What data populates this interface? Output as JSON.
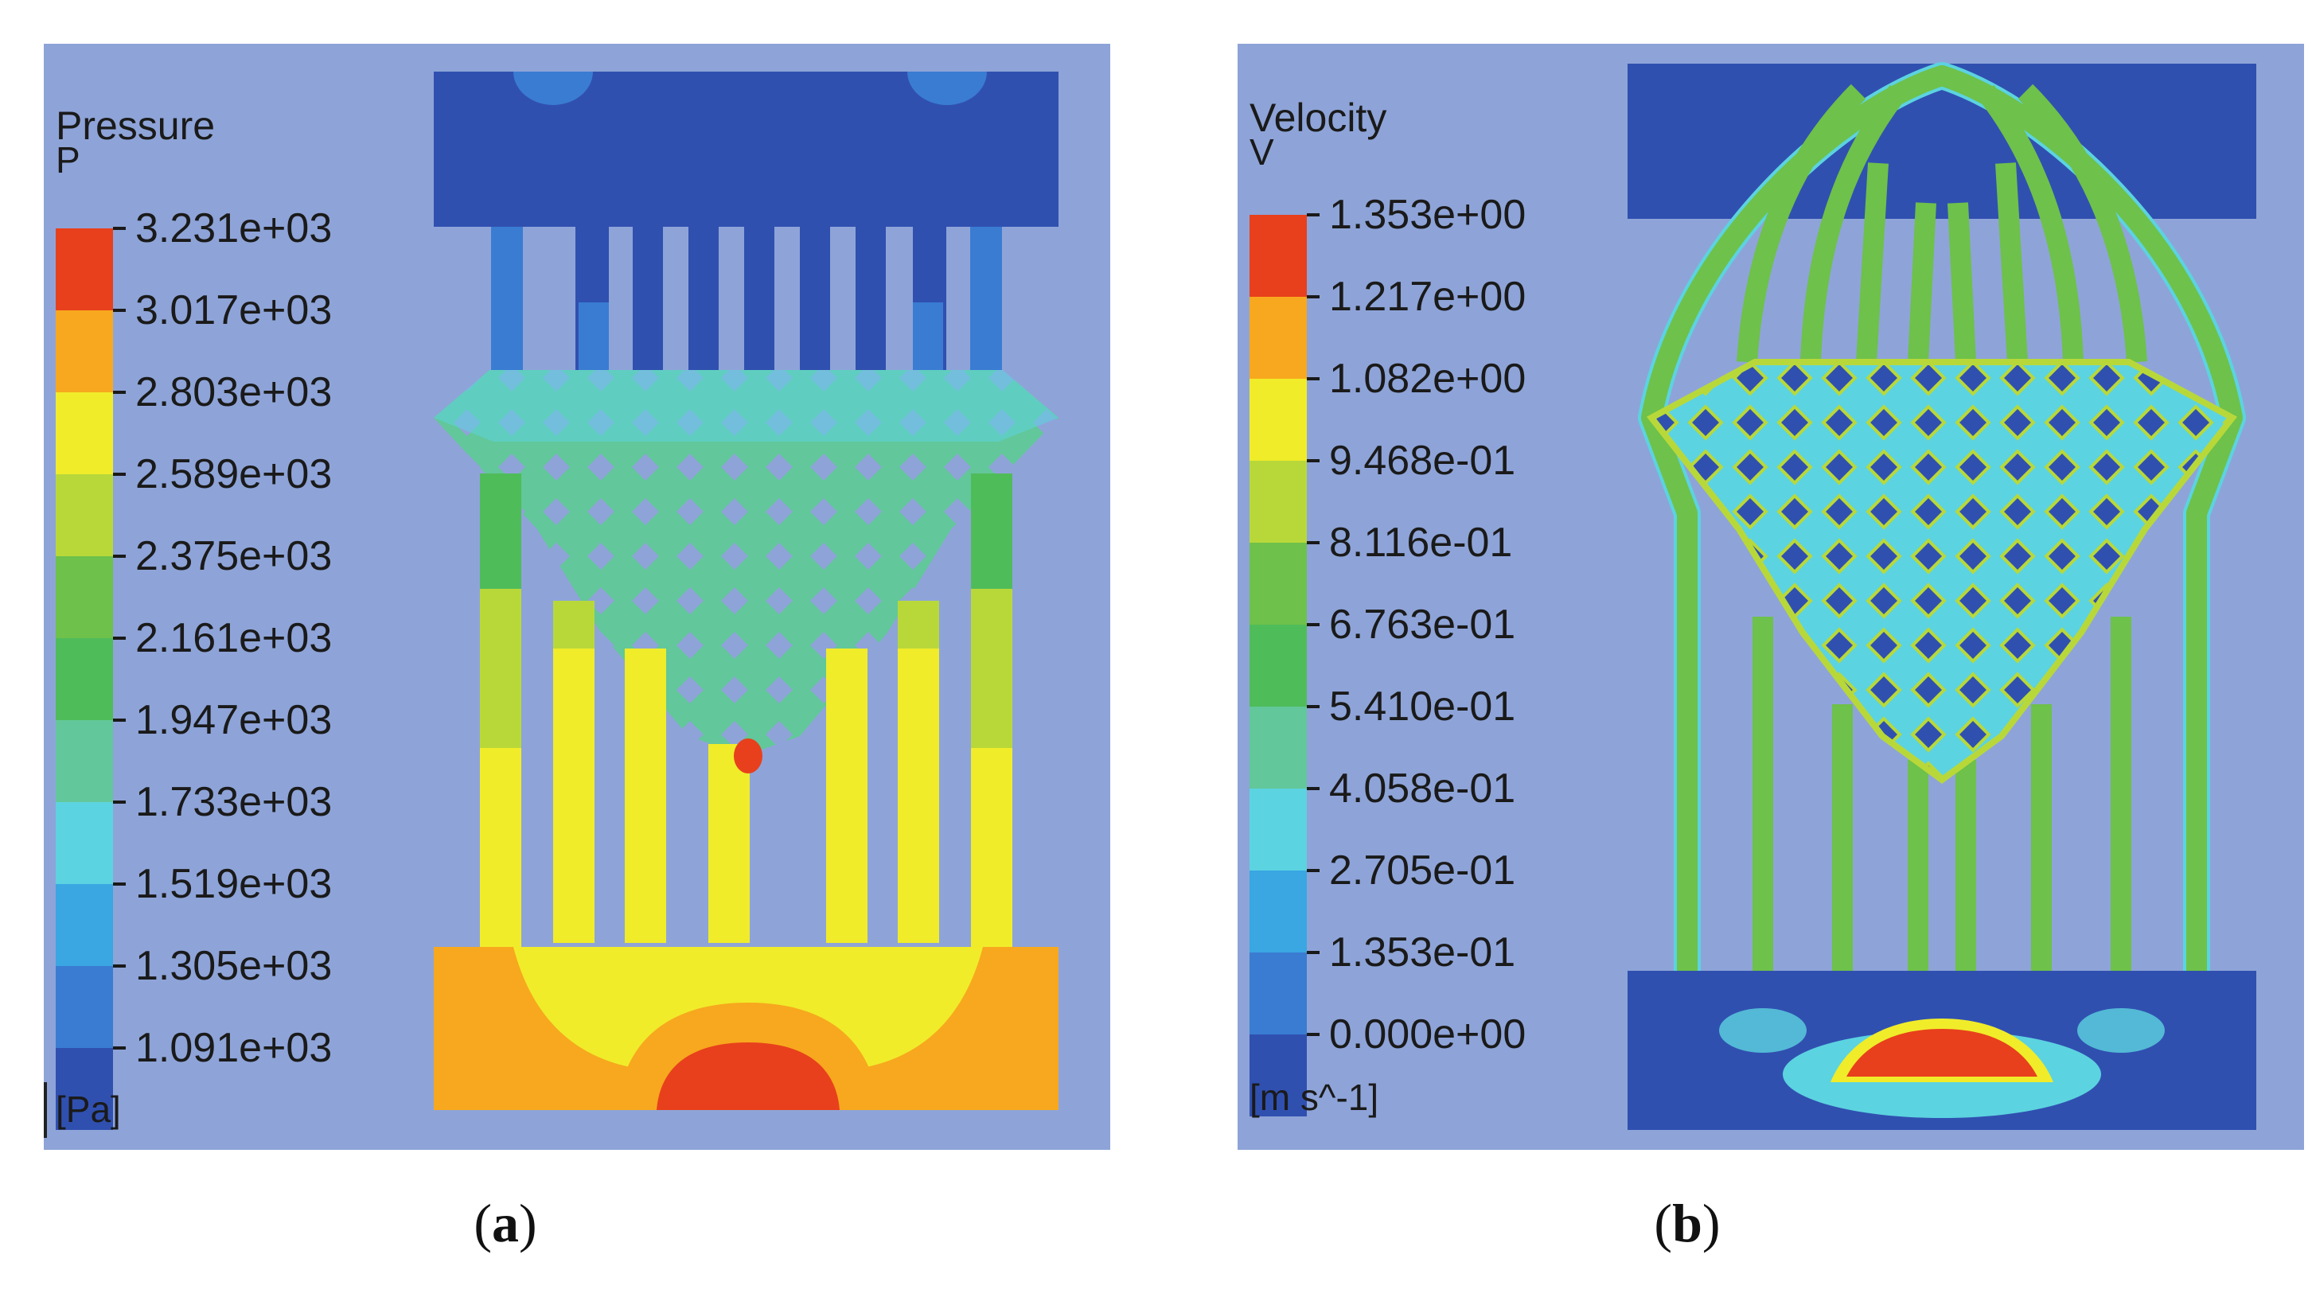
{
  "panels": [
    {
      "id": "a",
      "caption_letter": "a",
      "legend": {
        "title": "Pressure",
        "variable": "P",
        "unit": "[Pa]",
        "ticks": [
          "3.231e+03",
          "3.017e+03",
          "2.803e+03",
          "2.589e+03",
          "2.375e+03",
          "2.161e+03",
          "1.947e+03",
          "1.733e+03",
          "1.519e+03",
          "1.305e+03",
          "1.091e+03"
        ]
      }
    },
    {
      "id": "b",
      "caption_letter": "b",
      "legend": {
        "title": "Velocity",
        "variable": "V",
        "unit": "[m s^-1]",
        "ticks": [
          "1.353e+00",
          "1.217e+00",
          "1.082e+00",
          "9.468e-01",
          "8.116e-01",
          "6.763e-01",
          "5.410e-01",
          "4.058e-01",
          "2.705e-01",
          "1.353e-01",
          "0.000e+00"
        ]
      }
    }
  ],
  "colormap": [
    "#e8401c",
    "#f7a81e",
    "#f0ec2a",
    "#b8d83a",
    "#6ec14a",
    "#4fbc5a",
    "#62c79a",
    "#5cd3e0",
    "#3aa6e2",
    "#3a7cd2",
    "#3050b0"
  ],
  "background_color": "#8ea4d8"
}
